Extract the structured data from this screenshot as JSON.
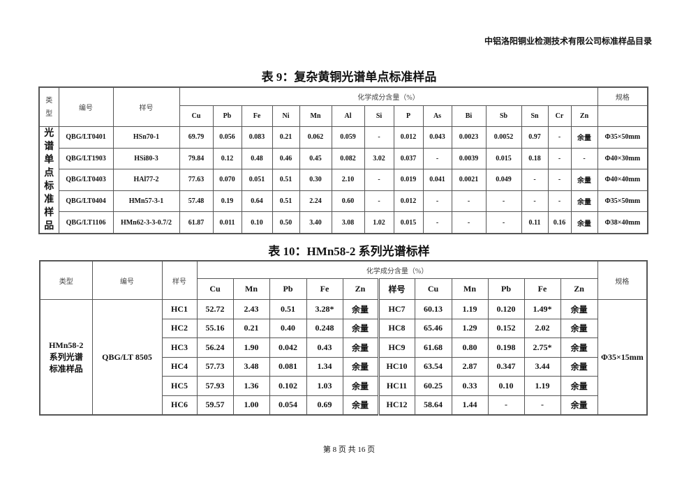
{
  "header": "中铝洛阳铜业检测技术有限公司标准样品目录",
  "table9": {
    "title": "表 9：复杂黄铜光谱单点标准样品",
    "col_type": "类型",
    "col_code": "编号",
    "col_sample": "样号",
    "col_group": "化学成分含量（%）",
    "col_spec": "规格",
    "elements": [
      "Cu",
      "Pb",
      "Fe",
      "Ni",
      "Mn",
      "Al",
      "Si",
      "P",
      "As",
      "Bi",
      "Sb",
      "Sn",
      "Cr",
      "Zn"
    ],
    "type_label": "光谱单点标准样品",
    "rows": [
      {
        "code": "QBG/LT0401",
        "sample": "HSn70-1",
        "values": [
          "69.79",
          "0.056",
          "0.083",
          "0.21",
          "0.062",
          "0.059",
          "-",
          "0.012",
          "0.043",
          "0.0023",
          "0.0052",
          "0.97",
          "-",
          "余量"
        ],
        "spec": "Φ35×50mm"
      },
      {
        "code": "QBG/LT1903",
        "sample": "HSi80-3",
        "values": [
          "79.84",
          "0.12",
          "0.48",
          "0.46",
          "0.45",
          "0.082",
          "3.02",
          "0.037",
          "-",
          "0.0039",
          "0.015",
          "0.18",
          "-",
          "-"
        ],
        "spec": "Φ40×30mm"
      },
      {
        "code": "QBG/LT0403",
        "sample": "HAl77-2",
        "values": [
          "77.63",
          "0.070",
          "0.051",
          "0.51",
          "0.30",
          "2.10",
          "-",
          "0.019",
          "0.041",
          "0.0021",
          "0.049",
          "-",
          "-",
          "余量"
        ],
        "spec": "Φ40×40mm"
      },
      {
        "code": "QBG/LT0404",
        "sample": "HMn57-3-1",
        "values": [
          "57.48",
          "0.19",
          "0.64",
          "0.51",
          "2.24",
          "0.60",
          "-",
          "0.012",
          "-",
          "-",
          "-",
          "-",
          "-",
          "余量"
        ],
        "spec": "Φ35×50mm"
      },
      {
        "code": "QBG/LT1106",
        "sample": "HMn62-3-3-0.7/2",
        "values": [
          "61.87",
          "0.011",
          "0.10",
          "0.50",
          "3.40",
          "3.08",
          "1.02",
          "0.015",
          "-",
          "-",
          "-",
          "0.11",
          "0.16",
          "余量"
        ],
        "spec": "Φ38×40mm"
      }
    ]
  },
  "table10": {
    "title": "表 10：HMn58-2 系列光谱标样",
    "col_type": "类型",
    "col_code": "编号",
    "col_sample": "样号",
    "col_group": "化学成分含量（%）",
    "col_spec": "规格",
    "elements": [
      "Cu",
      "Mn",
      "Pb",
      "Fe",
      "Zn"
    ],
    "type_label": "HMn58-2 系列光谱 标准样品",
    "code": "QBG/LT 8505",
    "spec": "Φ35×15mm",
    "left_rows": [
      {
        "sample": "HC1",
        "values": [
          "52.72",
          "2.43",
          "0.51",
          "3.28*",
          "余量"
        ]
      },
      {
        "sample": "HC2",
        "values": [
          "55.16",
          "0.21",
          "0.40",
          "0.248",
          "余量"
        ]
      },
      {
        "sample": "HC3",
        "values": [
          "56.24",
          "1.90",
          "0.042",
          "0.43",
          "余量"
        ]
      },
      {
        "sample": "HC4",
        "values": [
          "57.73",
          "3.48",
          "0.081",
          "1.34",
          "余量"
        ]
      },
      {
        "sample": "HC5",
        "values": [
          "57.93",
          "1.36",
          "0.102",
          "1.03",
          "余量"
        ]
      },
      {
        "sample": "HC6",
        "values": [
          "59.57",
          "1.00",
          "0.054",
          "0.69",
          "余量"
        ]
      }
    ],
    "right_rows": [
      {
        "sample": "HC7",
        "values": [
          "60.13",
          "1.19",
          "0.120",
          "1.49*",
          "余量"
        ]
      },
      {
        "sample": "HC8",
        "values": [
          "65.46",
          "1.29",
          "0.152",
          "2.02",
          "余量"
        ]
      },
      {
        "sample": "HC9",
        "values": [
          "61.68",
          "0.80",
          "0.198",
          "2.75*",
          "余量"
        ]
      },
      {
        "sample": "HC10",
        "values": [
          "63.54",
          "2.87",
          "0.347",
          "3.44",
          "余量"
        ]
      },
      {
        "sample": "HC11",
        "values": [
          "60.25",
          "0.33",
          "0.10",
          "1.19",
          "余量"
        ]
      },
      {
        "sample": "HC12",
        "values": [
          "58.64",
          "1.44",
          "-",
          "-",
          "余量"
        ]
      }
    ]
  },
  "footer": "第 8 页 共 16 页"
}
